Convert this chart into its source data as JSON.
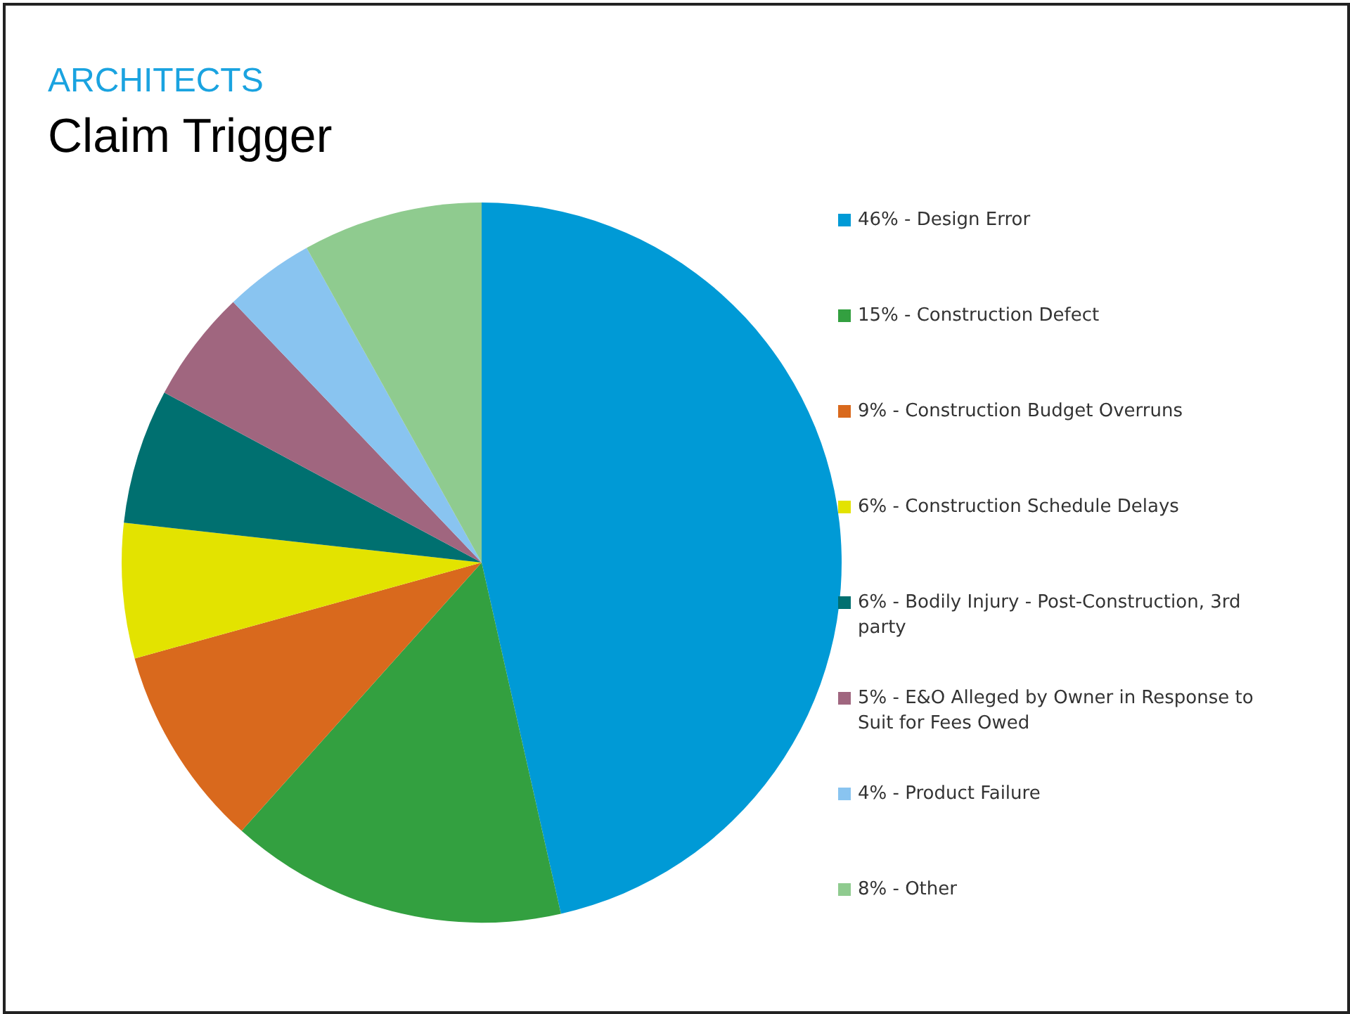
{
  "chart_data": {
    "type": "pie",
    "subtitle": "ARCHITECTS",
    "title": "Claim Trigger",
    "categories": [
      "46% - Design Error",
      "15% - Construction Defect",
      "9% - Construction Budget Overruns",
      "6% - Construction Schedule Delays",
      "6% - Bodily Injury - Post-Construction, 3rd party",
      "5% - E&O Alleged by Owner in Response to Suit for Fees Owed",
      "4% - Product Failure",
      "8% - Other"
    ],
    "values": [
      46,
      15,
      9,
      6,
      6,
      5,
      4,
      8
    ],
    "colors": [
      "#009ad6",
      "#33a040",
      "#d9691d",
      "#e3e300",
      "#007070",
      "#a0667f",
      "#89c4f0",
      "#8fcb8f"
    ],
    "legend": "right"
  }
}
